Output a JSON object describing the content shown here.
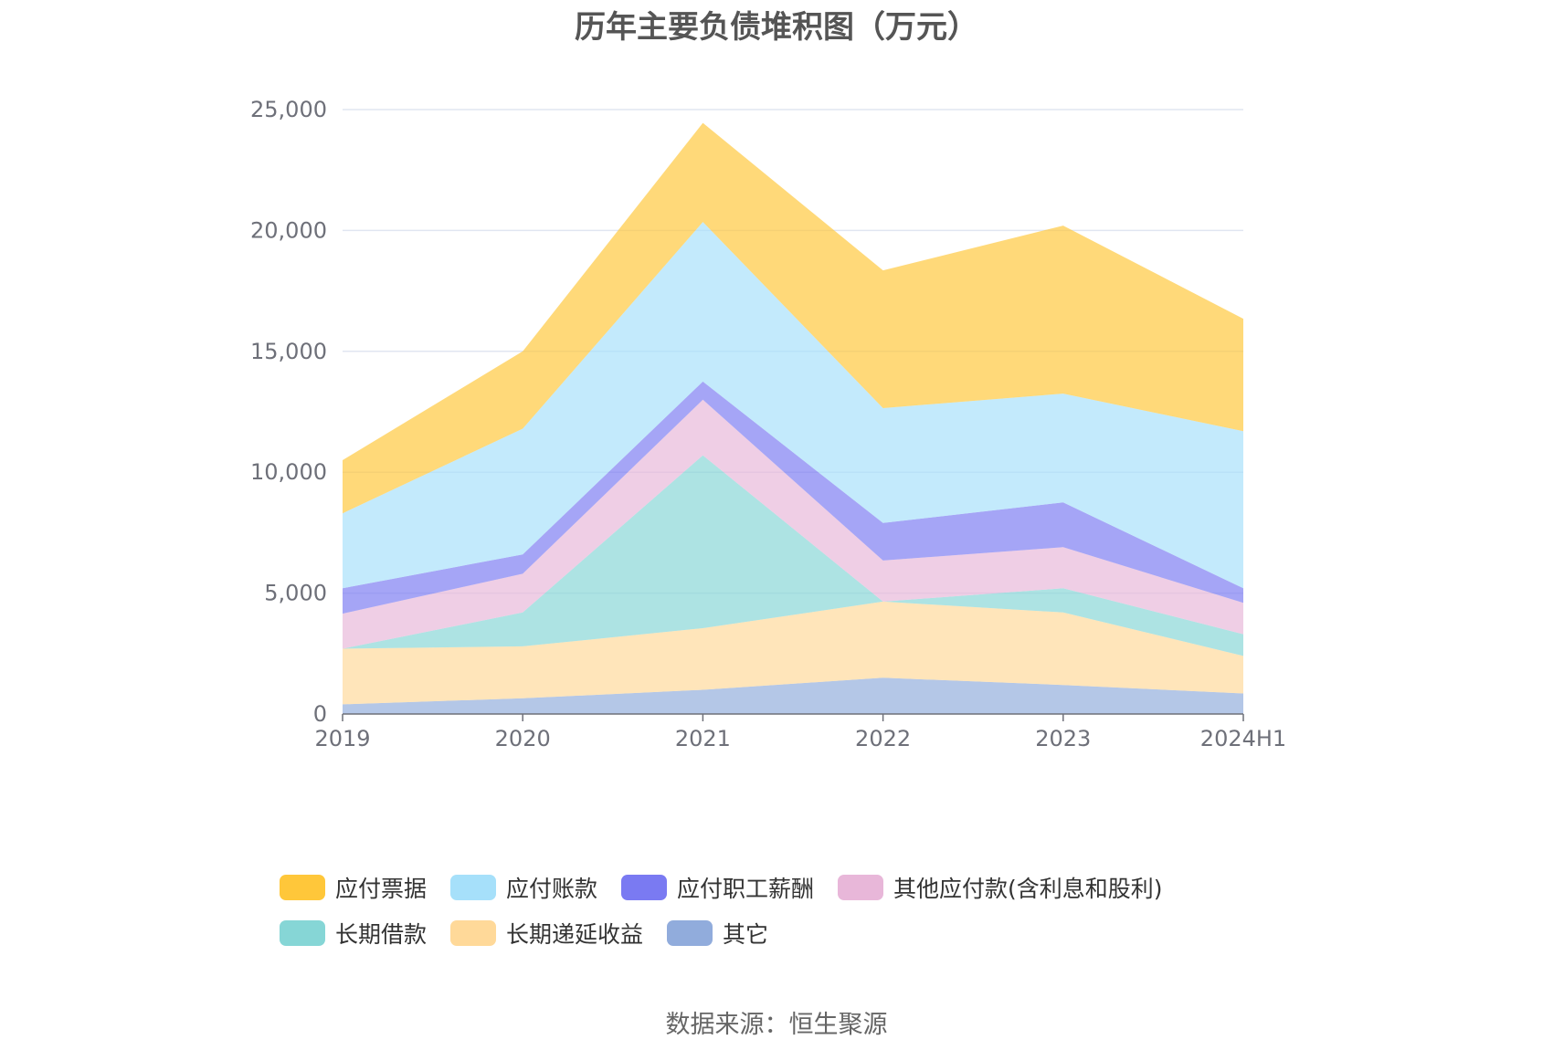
{
  "chart_data": {
    "type": "area",
    "stacked": true,
    "title": "历年主要负债堆积图（万元）",
    "categories": [
      "2019",
      "2020",
      "2021",
      "2022",
      "2023",
      "2024H1"
    ],
    "y_ticks": [
      "0",
      "5,000",
      "10,000",
      "15,000",
      "20,000",
      "25,000"
    ],
    "ylim": [
      0,
      25000
    ],
    "grid": true,
    "legend_position": "bottom",
    "series": [
      {
        "name": "其它",
        "color": "#91acdc",
        "values": [
          400,
          650,
          1000,
          1500,
          1200,
          850
        ]
      },
      {
        "name": "长期递延收益",
        "color": "#ffd999",
        "values": [
          2300,
          2150,
          2550,
          3150,
          3000,
          1550
        ]
      },
      {
        "name": "长期借款",
        "color": "#86d6d6",
        "values": [
          0,
          1400,
          7150,
          0,
          1000,
          900
        ]
      },
      {
        "name": "其他应付款(含利息和股利)",
        "color": "#e8b7d9",
        "values": [
          1450,
          1600,
          2300,
          1700,
          1700,
          1300
        ]
      },
      {
        "name": "应付职工薪酬",
        "color": "#7a7af2",
        "values": [
          1050,
          800,
          750,
          1550,
          1850,
          600
        ]
      },
      {
        "name": "应付账款",
        "color": "#a6e0fa",
        "values": [
          3100,
          5200,
          6600,
          4750,
          4500,
          6500
        ]
      },
      {
        "name": "应付票据",
        "color": "#ffc73a",
        "values": [
          2200,
          3200,
          4100,
          5700,
          6950,
          4650
        ]
      }
    ],
    "legend_order": [
      "应付票据",
      "应付账款",
      "应付职工薪酬",
      "其他应付款(含利息和股利)",
      "长期借款",
      "长期递延收益",
      "其它"
    ]
  },
  "source_note": "数据来源：恒生聚源"
}
